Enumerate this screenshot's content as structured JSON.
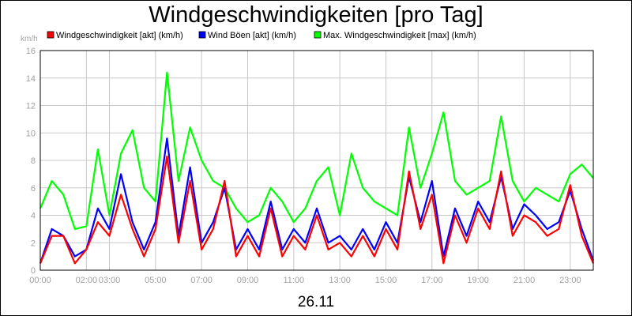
{
  "chart_data": {
    "type": "line",
    "title": "Windgeschwindigkeiten [pro Tag]",
    "ylabel": "km/h",
    "xlabel": "26.11",
    "ylim": [
      0,
      16
    ],
    "xlim": [
      0,
      24
    ],
    "y_ticks": [
      0,
      2,
      4,
      6,
      8,
      10,
      12,
      14,
      16
    ],
    "x_ticks": [
      "00:00",
      "02:00",
      "03:00",
      "05:00",
      "07:00",
      "09:00",
      "11:00",
      "13:00",
      "15:00",
      "17:00",
      "19:00",
      "21:00",
      "23:00"
    ],
    "x_tick_hours": [
      0,
      2,
      3,
      5,
      7,
      9,
      11,
      13,
      15,
      17,
      19,
      21,
      23
    ],
    "grid": true,
    "legend_position": "top-left",
    "x_hours": [
      0,
      0.5,
      1,
      1.5,
      2,
      2.5,
      3,
      3.5,
      4,
      4.5,
      5,
      5.5,
      6,
      6.5,
      7,
      7.5,
      8,
      8.5,
      9,
      9.5,
      10,
      10.5,
      11,
      11.5,
      12,
      12.5,
      13,
      13.5,
      14,
      14.5,
      15,
      15.5,
      16,
      16.5,
      17,
      17.5,
      18,
      18.5,
      19,
      19.5,
      20,
      20.5,
      21,
      21.5,
      22,
      22.5,
      23,
      23.5,
      24
    ],
    "series": [
      {
        "name": "Windgeschwindigkeit [akt] (km/h)",
        "color": "#ff0000",
        "values": [
          0.5,
          2.5,
          2.5,
          0.5,
          1.5,
          3.5,
          2.5,
          5.5,
          3.0,
          1.0,
          3.0,
          8.3,
          2.0,
          6.5,
          1.5,
          3.0,
          6.5,
          1.0,
          2.5,
          1.0,
          4.5,
          1.0,
          2.5,
          1.5,
          4.0,
          1.5,
          2.0,
          1.0,
          2.5,
          1.0,
          3.0,
          1.5,
          7.2,
          3.0,
          5.5,
          0.5,
          4.0,
          2.0,
          4.5,
          3.0,
          7.2,
          2.5,
          4.0,
          3.5,
          2.5,
          3.0,
          6.2,
          2.5,
          0.5
        ]
      },
      {
        "name": "Wind Böen [akt] (km/h)",
        "color": "#0000ff",
        "values": [
          0.5,
          3.0,
          2.5,
          1.0,
          1.5,
          4.5,
          3.0,
          7.0,
          3.5,
          1.5,
          3.5,
          9.6,
          2.5,
          7.5,
          2.0,
          3.5,
          6.0,
          1.5,
          3.0,
          1.5,
          5.0,
          1.5,
          3.0,
          2.0,
          4.5,
          2.0,
          2.5,
          1.5,
          3.0,
          1.5,
          3.5,
          2.0,
          6.8,
          3.5,
          6.5,
          1.0,
          4.5,
          2.5,
          5.0,
          3.5,
          6.8,
          3.0,
          4.8,
          4.0,
          3.0,
          3.5,
          5.8,
          3.0,
          0.7
        ]
      },
      {
        "name": "Max. Windgeschwindigkeit [max] (km/h)",
        "color": "#00ff00",
        "values": [
          4.5,
          6.5,
          5.5,
          3.0,
          3.2,
          8.8,
          4.0,
          8.5,
          10.2,
          6.0,
          5.0,
          14.4,
          6.5,
          10.4,
          8.0,
          6.5,
          6.0,
          4.5,
          3.5,
          4.0,
          6.0,
          5.0,
          3.5,
          4.5,
          6.5,
          7.5,
          4.0,
          8.5,
          6.0,
          5.0,
          4.5,
          4.0,
          10.4,
          6.0,
          8.5,
          11.5,
          6.5,
          5.5,
          6.0,
          6.5,
          11.2,
          6.5,
          5.0,
          6.0,
          5.5,
          5.0,
          7.0,
          7.7,
          6.7
        ]
      }
    ]
  }
}
